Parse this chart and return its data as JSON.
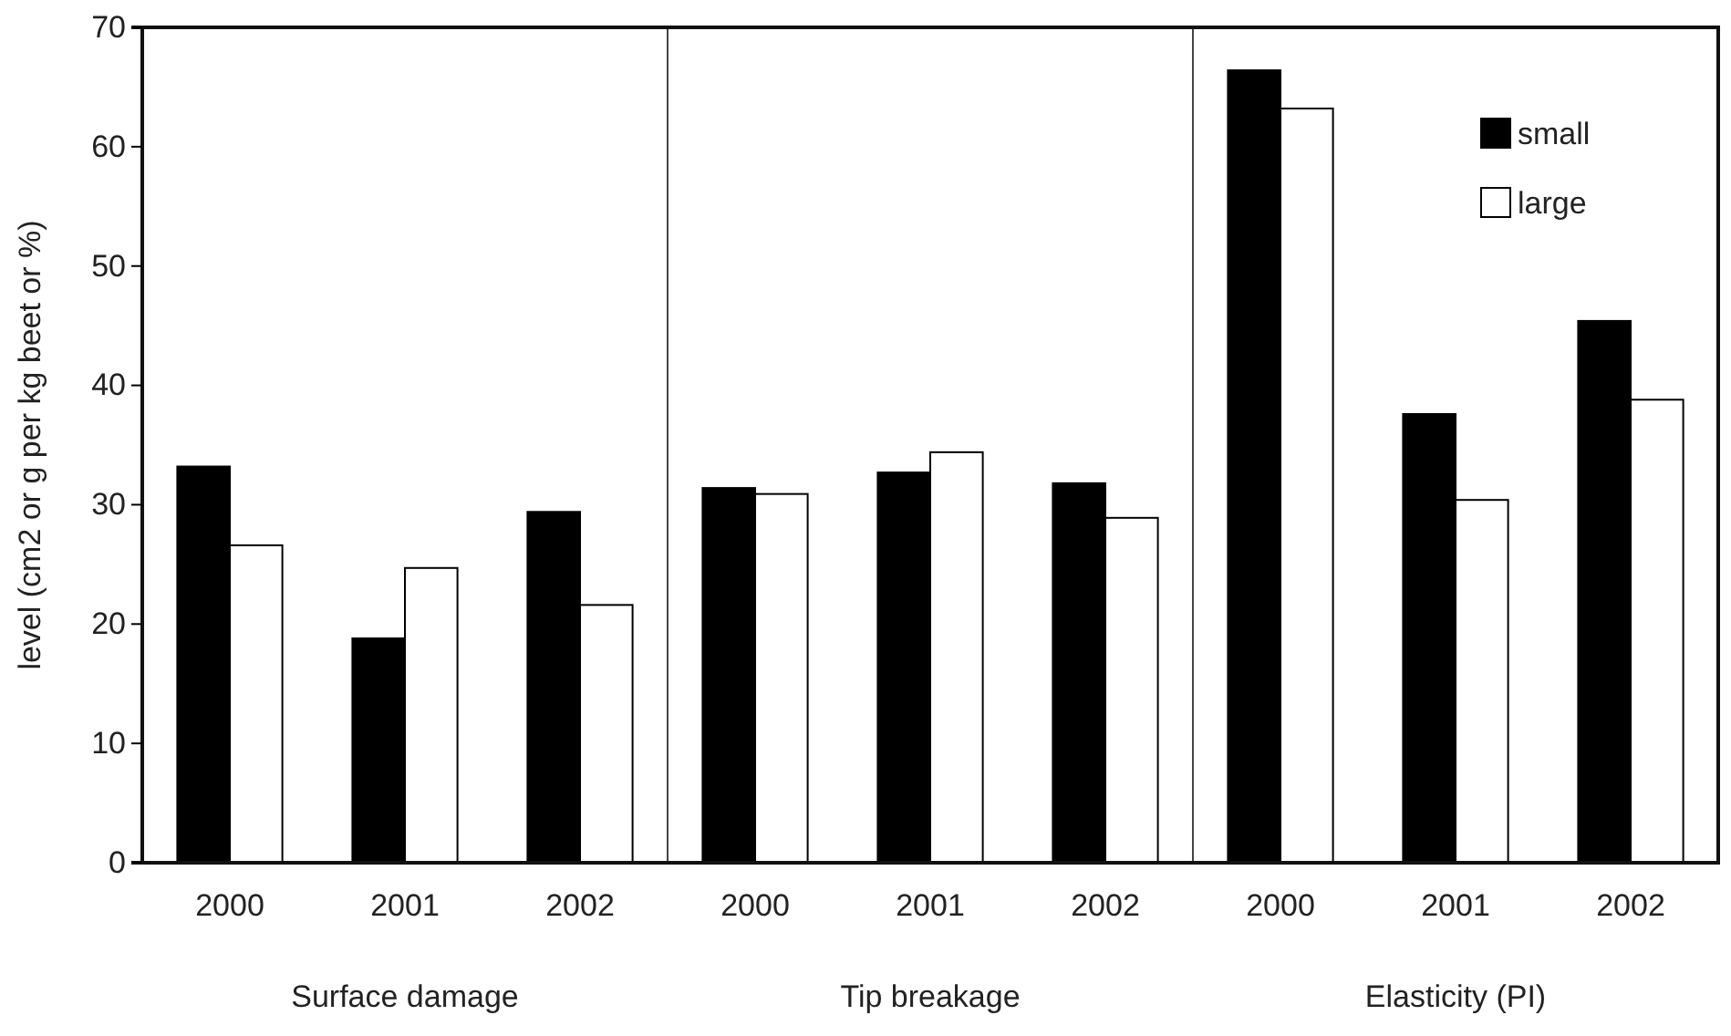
{
  "chart_data": {
    "type": "bar",
    "ylabel": "level (cm2 or g per kg beet or %)",
    "categories": [
      "2000",
      "2001",
      "2002",
      "2000",
      "2001",
      "2002",
      "2000",
      "2001",
      "2002"
    ],
    "series": [
      {
        "name": "small",
        "color": "#000000",
        "values": [
          33.2,
          18.8,
          29.4,
          31.4,
          32.7,
          31.8,
          66.4,
          37.6,
          45.4
        ]
      },
      {
        "name": "large",
        "color": "#ffffff",
        "values": [
          26.6,
          24.7,
          21.6,
          30.9,
          34.4,
          28.9,
          63.2,
          30.4,
          38.8
        ]
      }
    ],
    "annotations": [
      "Surface damage",
      "Tip breakage",
      "Elasticity (PI)"
    ],
    "ylim": [
      0,
      70
    ],
    "yticks": [
      0,
      10,
      20,
      30,
      40,
      50,
      60,
      70
    ],
    "grid": false,
    "legend": "top right"
  }
}
